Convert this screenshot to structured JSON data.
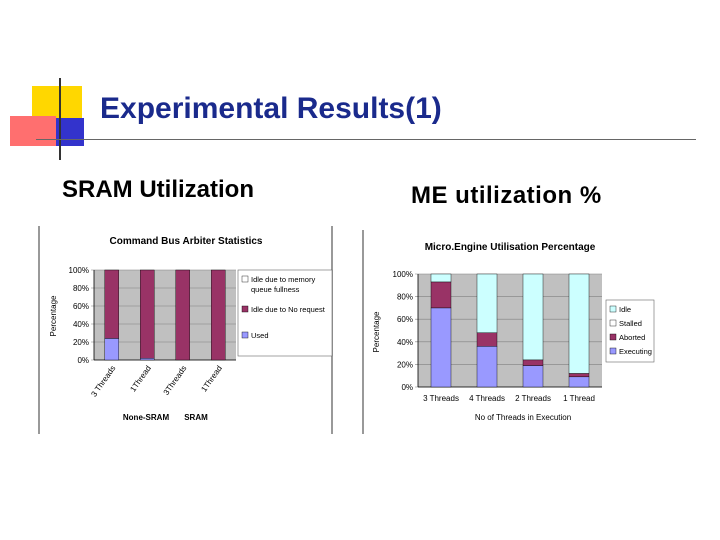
{
  "slide": {
    "title": "Experimental Results(1)",
    "left_heading": "SRAM Utilization",
    "right_heading": "ME utilization %"
  },
  "colors": {
    "title": "#1a2a8c",
    "deco_yellow": "#ffd700",
    "deco_red": "#ff6666",
    "deco_blue": "#3333cc",
    "idle": "#ccffff",
    "maroon": "#993366",
    "used": "#9999ff",
    "plot_bg": "#c0c0c0"
  },
  "chart_data": [
    {
      "type": "bar",
      "stacked": true,
      "title": "Command Bus Arbiter Statistics",
      "xlabel": "",
      "ylabel": "Percentage",
      "ylim": [
        0,
        100
      ],
      "yticks": [
        "0%",
        "20%",
        "40%",
        "60%",
        "80%",
        "100%"
      ],
      "categories": [
        "3 Threads",
        "1Thread",
        "3Threads",
        "1Thread"
      ],
      "group_labels": [
        "None-SRAM",
        "SRAM"
      ],
      "series": [
        {
          "name": "Used",
          "color": "#9999ff",
          "values": [
            24,
            2,
            0,
            0
          ]
        },
        {
          "name": "Idle due to No request",
          "color": "#993366",
          "values": [
            76,
            98,
            100,
            100
          ]
        },
        {
          "name": "Idle due to memory queue fullness",
          "color": "#ffffff",
          "values": [
            0,
            0,
            0,
            0
          ]
        }
      ],
      "legend_order": [
        "Idle due to memory queue fullness",
        "Idle due to No request",
        "Used"
      ],
      "legend": "right"
    },
    {
      "type": "bar",
      "stacked": true,
      "title": "Micro.Engine Utilisation Percentage",
      "xlabel": "No of Threads in Execution",
      "ylabel": "Percentage",
      "ylim": [
        0,
        100
      ],
      "yticks": [
        "0%",
        "20%",
        "40%",
        "60%",
        "80%",
        "100%"
      ],
      "categories": [
        "3 Threads",
        "4 Threads",
        "2 Threads",
        "1 Thread"
      ],
      "series": [
        {
          "name": "Executing",
          "color": "#9999ff",
          "values": [
            70,
            36,
            19,
            9
          ]
        },
        {
          "name": "Aborted",
          "color": "#993366",
          "values": [
            23,
            12,
            5,
            3
          ]
        },
        {
          "name": "Stalled",
          "color": "#ffffff",
          "values": [
            0,
            0,
            0,
            0
          ]
        },
        {
          "name": "Idle",
          "color": "#ccffff",
          "values": [
            7,
            52,
            76,
            88
          ]
        }
      ],
      "legend_order": [
        "Idle",
        "Stalled",
        "Aborted",
        "Executing"
      ],
      "legend": "right"
    }
  ]
}
